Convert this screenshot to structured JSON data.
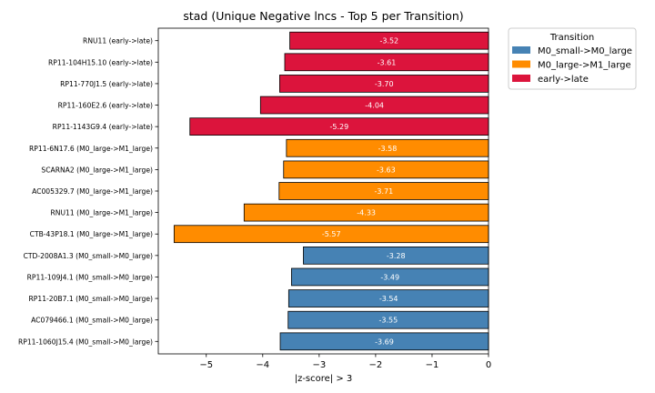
{
  "chart_data": {
    "type": "bar",
    "orientation": "horizontal",
    "title": "stad (Unique Negative lncs - Top 5 per Transition)",
    "xlabel": "|z-score| > 3",
    "ylabel": "",
    "xlim": [
      -5.85,
      0
    ],
    "xticks": [
      -5,
      -4,
      -3,
      -2,
      -1,
      0
    ],
    "xtick_labels": [
      "−5",
      "−4",
      "−3",
      "−2",
      "−1",
      "0"
    ],
    "grid": false,
    "legend": {
      "title": "Transition",
      "placement": "outside-top-right",
      "entries": [
        {
          "label": "M0_small->M0_large",
          "color": "#4682b4"
        },
        {
          "label": "M0_large->M1_large",
          "color": "#ff8c00"
        },
        {
          "label": "early->late",
          "color": "#dc143c"
        }
      ]
    },
    "bars": [
      {
        "label": "RNU11 (early->late)",
        "value": -3.52,
        "value_label": "-3.52",
        "group": "early->late"
      },
      {
        "label": "RP11-104H15.10 (early->late)",
        "value": -3.61,
        "value_label": "-3.61",
        "group": "early->late"
      },
      {
        "label": "RP11-770J1.5 (early->late)",
        "value": -3.7,
        "value_label": "-3.70",
        "group": "early->late"
      },
      {
        "label": "RP11-160E2.6 (early->late)",
        "value": -4.04,
        "value_label": "-4.04",
        "group": "early->late"
      },
      {
        "label": "RP11-1143G9.4 (early->late)",
        "value": -5.29,
        "value_label": "-5.29",
        "group": "early->late"
      },
      {
        "label": "RP11-6N17.6 (M0_large->M1_large)",
        "value": -3.58,
        "value_label": "-3.58",
        "group": "M0_large->M1_large"
      },
      {
        "label": "SCARNA2 (M0_large->M1_large)",
        "value": -3.63,
        "value_label": "-3.63",
        "group": "M0_large->M1_large"
      },
      {
        "label": "AC005329.7 (M0_large->M1_large)",
        "value": -3.71,
        "value_label": "-3.71",
        "group": "M0_large->M1_large"
      },
      {
        "label": "RNU11 (M0_large->M1_large)",
        "value": -4.33,
        "value_label": "-4.33",
        "group": "M0_large->M1_large"
      },
      {
        "label": "CTB-43P18.1 (M0_large->M1_large)",
        "value": -5.57,
        "value_label": "-5.57",
        "group": "M0_large->M1_large"
      },
      {
        "label": "CTD-2008A1.3 (M0_small->M0_large)",
        "value": -3.28,
        "value_label": "-3.28",
        "group": "M0_small->M0_large"
      },
      {
        "label": "RP11-109J4.1 (M0_small->M0_large)",
        "value": -3.49,
        "value_label": "-3.49",
        "group": "M0_small->M0_large"
      },
      {
        "label": "RP11-20B7.1 (M0_small->M0_large)",
        "value": -3.54,
        "value_label": "-3.54",
        "group": "M0_small->M0_large"
      },
      {
        "label": "AC079466.1 (M0_small->M0_large)",
        "value": -3.55,
        "value_label": "-3.55",
        "group": "M0_small->M0_large"
      },
      {
        "label": "RP11-1060J15.4 (M0_small->M0_large)",
        "value": -3.69,
        "value_label": "-3.69",
        "group": "M0_small->M0_large"
      }
    ]
  }
}
